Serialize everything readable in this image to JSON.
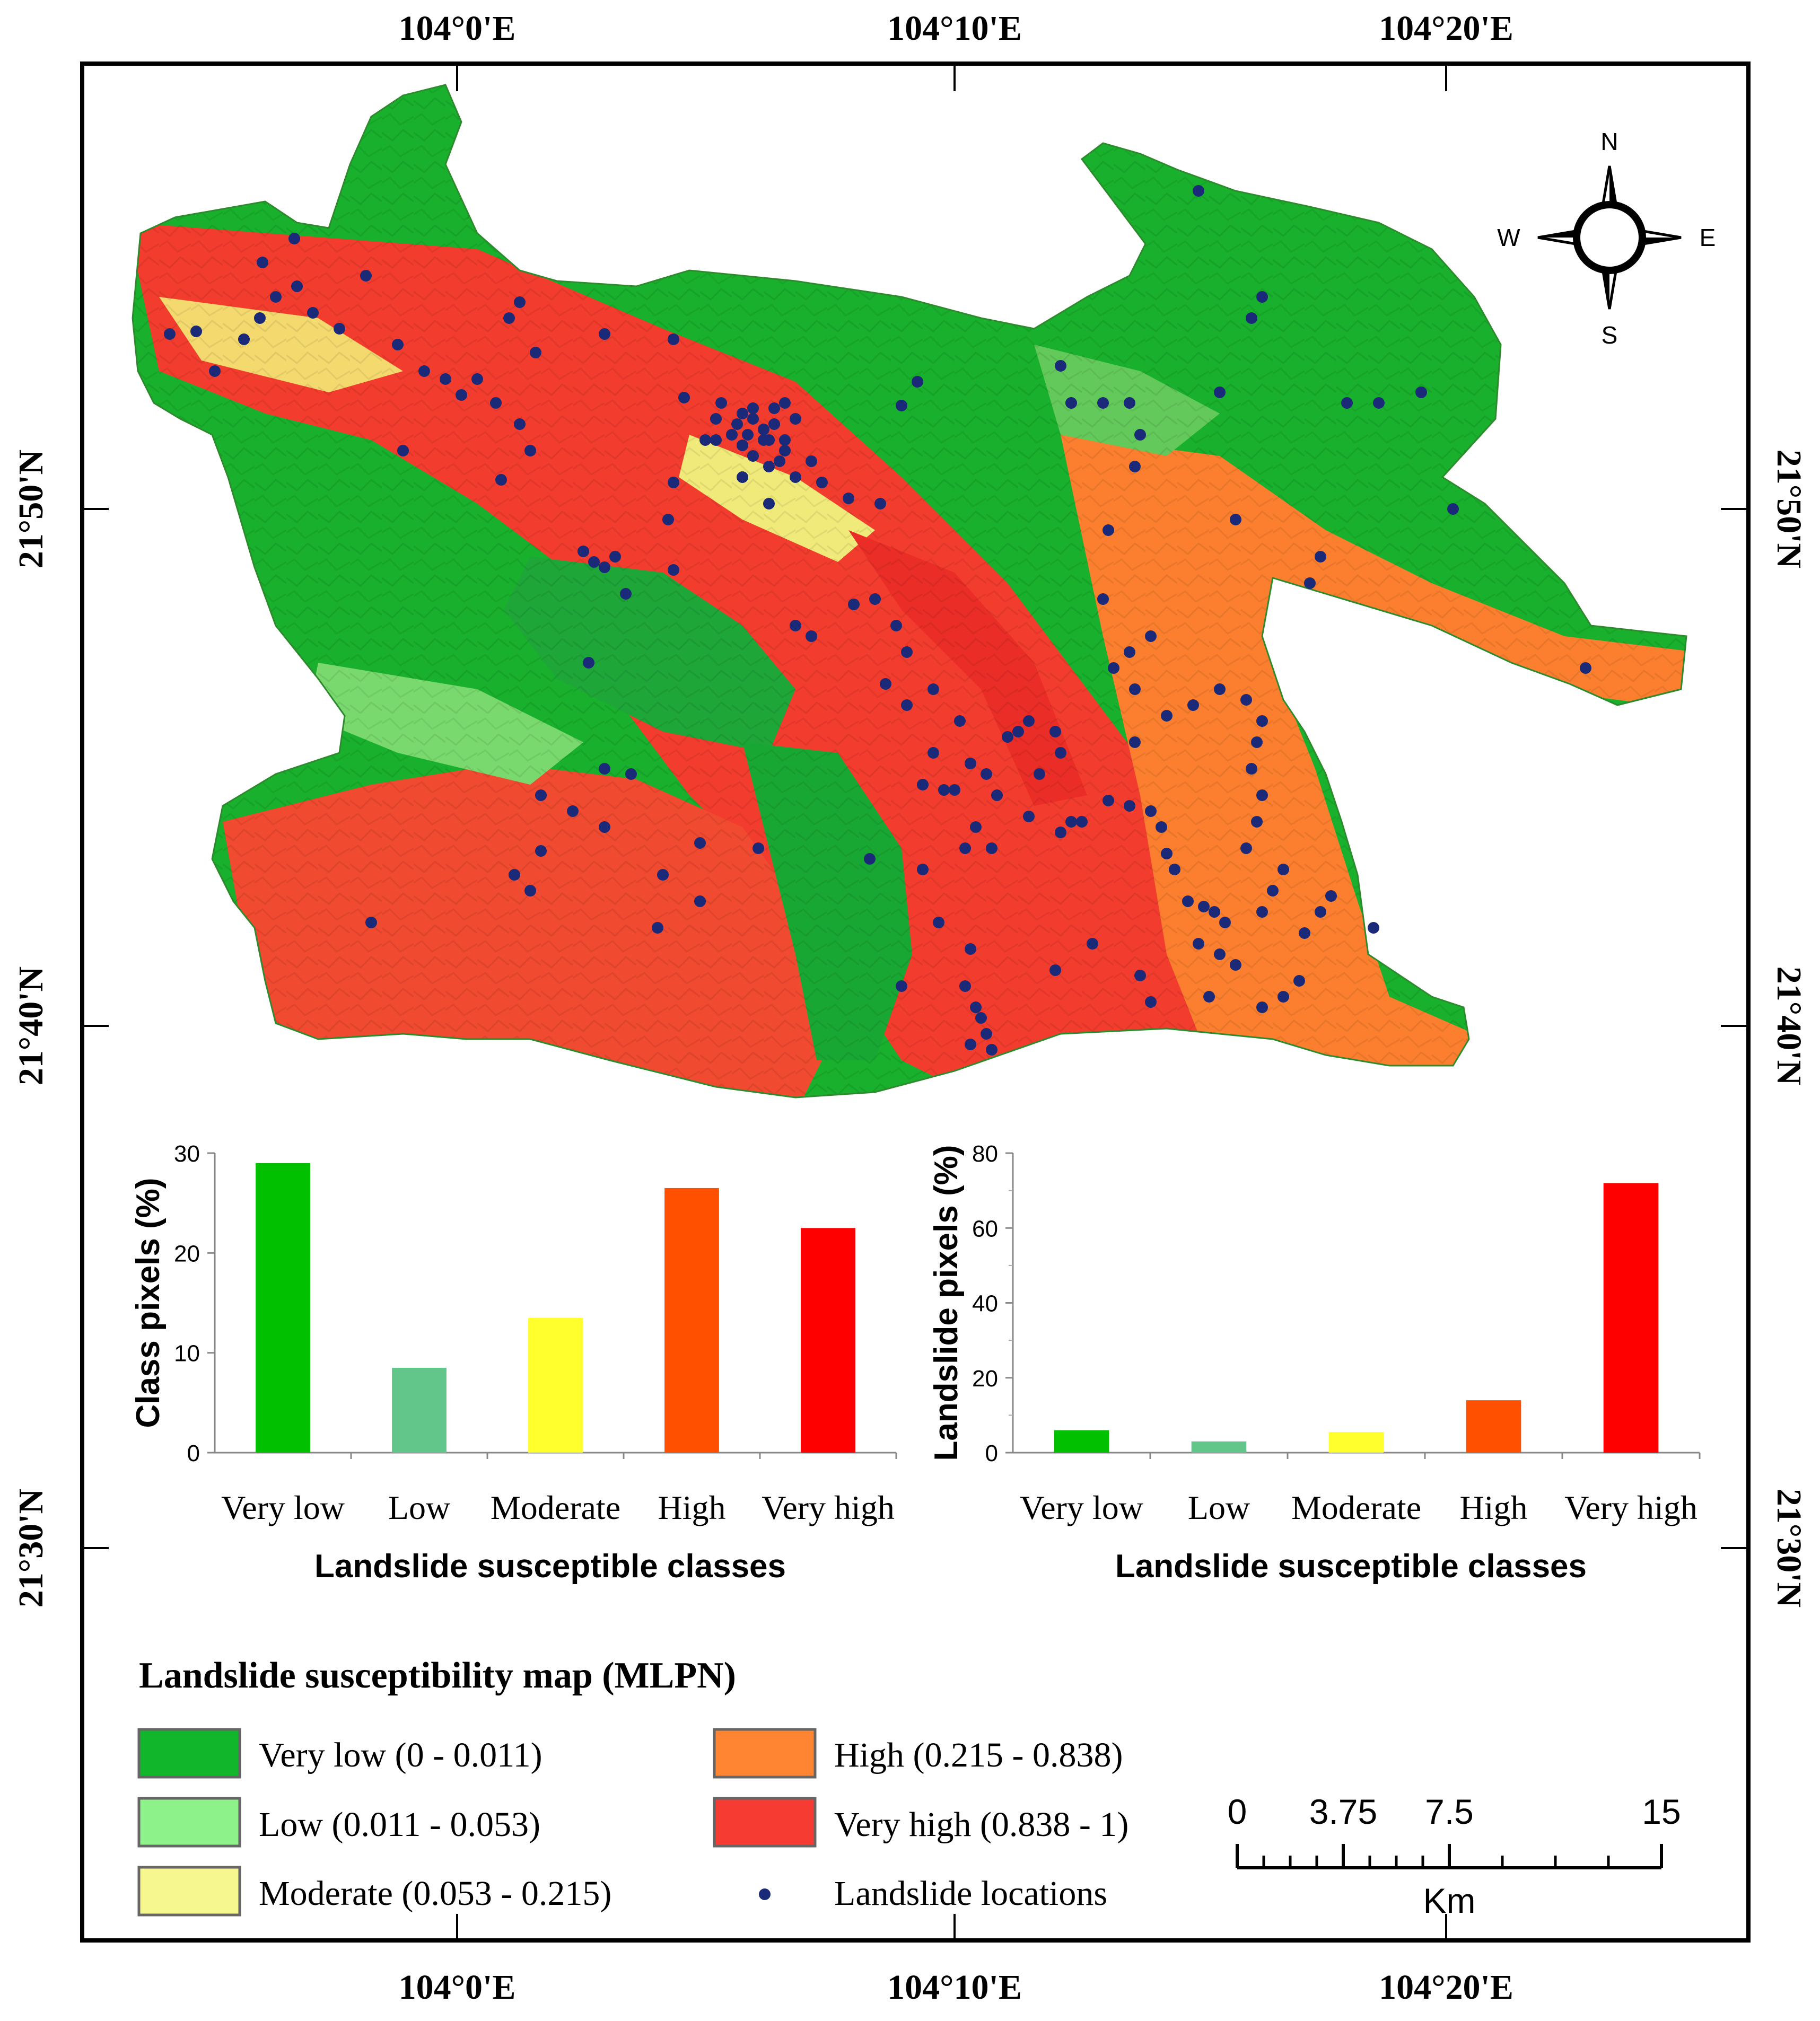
{
  "graticule": {
    "lon_labels": [
      "104°0'E",
      "104°10'E",
      "104°20'E"
    ],
    "lat_labels": [
      "21°50'N",
      "21°40'N",
      "21°30'N"
    ]
  },
  "compass": {
    "n": "N",
    "s": "S",
    "e": "E",
    "w": "W"
  },
  "legend": {
    "title": "Landslide susceptibility map (MLPN)",
    "items": [
      {
        "label": "Very low (0 - 0.011)",
        "color": "#11b62a"
      },
      {
        "label": "Low (0.011 - 0.053)",
        "color": "#8ef28a"
      },
      {
        "label": "Moderate (0.053 - 0.215)",
        "color": "#f6f78e"
      },
      {
        "label": "High (0.215 - 0.838)",
        "color": "#ff8533"
      },
      {
        "label": "Very high (0.838 - 1)",
        "color": "#f53b32"
      },
      {
        "label": "Landslide locations",
        "color": "#1a2a78"
      }
    ]
  },
  "scale_bar": {
    "ticks": [
      "0",
      "3.75",
      "7.5",
      "15"
    ],
    "unit": "Km"
  },
  "chart_data": [
    {
      "type": "bar",
      "categories": [
        "Very low",
        "Low",
        "Moderate",
        "High",
        "Very high"
      ],
      "values": [
        29,
        8.5,
        13.5,
        26.5,
        22.5
      ],
      "colors": [
        "#00c000",
        "#62c68a",
        "#ffff2e",
        "#ff5000",
        "#ff0000"
      ],
      "ylabel": "Class pixels (%)",
      "xlabel": "Landslide susceptible classes",
      "ylim": [
        0,
        30
      ],
      "yticks": [
        "0",
        "10",
        "20",
        "30"
      ]
    },
    {
      "type": "bar",
      "categories": [
        "Very low",
        "Low",
        "Moderate",
        "High",
        "Very high"
      ],
      "values": [
        6,
        3,
        5.5,
        14,
        72
      ],
      "colors": [
        "#00c000",
        "#62c68a",
        "#ffff2e",
        "#ff5000",
        "#ff0000"
      ],
      "ylabel": "Landslide pixels (%)",
      "xlabel": "Landslide susceptible classes",
      "ylim": [
        0,
        80
      ],
      "yticks": [
        "0",
        "20",
        "40",
        "60",
        "80"
      ]
    }
  ]
}
